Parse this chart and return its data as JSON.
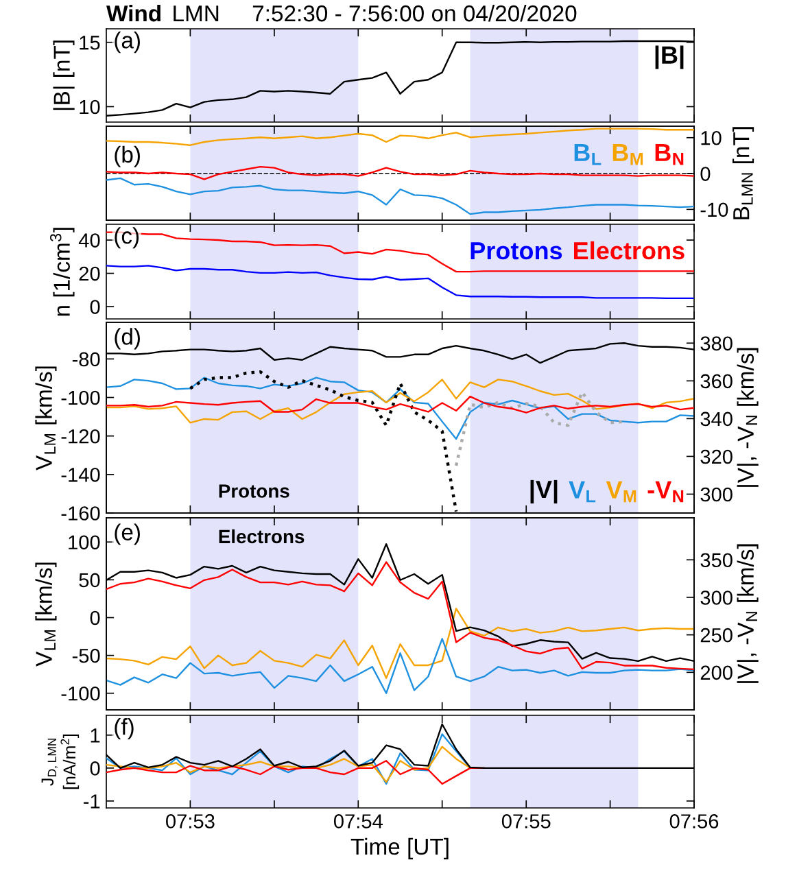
{
  "chart_data": [
    {
      "type": "line",
      "title": "Wind",
      "subtitle": "LMN     7:52:30 - 7:56:00 on 04/20/2020",
      "ylabel": "|B| [nT]",
      "annotations": [
        "(a)"
      ],
      "legend": "top right",
      "tick_labels": "y",
      "x": [
        7.875,
        7.87639,
        7.87778,
        7.87917,
        7.88056,
        7.88194,
        7.88333,
        7.88472,
        7.88611,
        7.8875,
        7.88889,
        7.89028,
        7.89167,
        7.89306,
        7.89444,
        7.89583,
        7.89722,
        7.89861,
        7.9,
        7.90139,
        7.90278,
        7.90417,
        7.90556,
        7.90694,
        7.90833,
        7.90972,
        7.91111,
        7.9125,
        7.91389,
        7.91528,
        7.91667,
        7.91806,
        7.91944,
        7.92083,
        7.92222,
        7.92361,
        7.925,
        7.92639,
        7.92778,
        7.92917,
        7.93056,
        7.93194,
        7.93333
      ],
      "xlim": [
        7.875,
        7.93333
      ],
      "xticks": [
        {
          "value": 7.88333,
          "label": null
        },
        {
          "value": 7.89167,
          "label": null
        },
        {
          "value": 7.9,
          "label": null
        },
        {
          "value": 7.90833,
          "label": null
        },
        {
          "value": 7.91667,
          "label": null
        },
        {
          "value": 7.925,
          "label": null
        },
        {
          "value": 7.93333,
          "label": null
        }
      ],
      "ylim": [
        8.8,
        16.05
      ],
      "yticks": [
        10,
        15
      ],
      "bands": [
        {
          "axis": "x",
          "from": 7.88333,
          "to": 7.9,
          "color": "#e3e3fb"
        },
        {
          "axis": "x",
          "from": 7.91111,
          "to": 7.92778,
          "color": "#e3e3fb"
        }
      ],
      "series": [
        {
          "name": "|B|",
          "color": "#000000",
          "values": [
            9.29,
            9.37,
            9.46,
            9.57,
            9.74,
            10.23,
            9.94,
            10.37,
            10.51,
            10.57,
            10.74,
            11.23,
            11.17,
            11.23,
            11.17,
            11.09,
            11.0,
            11.94,
            12.09,
            12.23,
            12.66,
            11.0,
            11.94,
            12.09,
            12.66,
            15.0,
            15.0,
            14.97,
            14.97,
            15.0,
            15.03,
            15.0,
            15.03,
            15.03,
            15.06,
            15.06,
            15.06,
            15.09,
            15.09,
            15.09,
            15.09,
            15.09,
            15.06
          ]
        }
      ]
    },
    {
      "type": "line",
      "y2label": "B$_{LMN}$ [nT]",
      "annotations": [
        "(b)"
      ],
      "legend": "top right",
      "tick_labels": "y",
      "x": [
        7.875,
        7.87639,
        7.87778,
        7.87917,
        7.88056,
        7.88194,
        7.88333,
        7.88472,
        7.88611,
        7.8875,
        7.88889,
        7.89028,
        7.89167,
        7.89306,
        7.89444,
        7.89583,
        7.89722,
        7.89861,
        7.9,
        7.90139,
        7.90278,
        7.90417,
        7.90556,
        7.90694,
        7.90833,
        7.90972,
        7.91111,
        7.9125,
        7.91389,
        7.91528,
        7.91667,
        7.91806,
        7.91944,
        7.92083,
        7.92222,
        7.92361,
        7.925,
        7.92639,
        7.92778,
        7.92917,
        7.93056,
        7.93194,
        7.93333
      ],
      "xlim": [
        7.875,
        7.93333
      ],
      "xticks": [
        {
          "value": 7.88333,
          "label": null
        },
        {
          "value": 7.89167,
          "label": null
        },
        {
          "value": 7.9,
          "label": null
        },
        {
          "value": 7.90833,
          "label": null
        },
        {
          "value": 7.91667,
          "label": null
        },
        {
          "value": 7.925,
          "label": null
        },
        {
          "value": 7.93333,
          "label": null
        }
      ],
      "y2lim": [
        -13,
        13.2
      ],
      "y2ticks": [
        -10,
        0,
        10
      ],
      "bands": [
        {
          "axis": "x",
          "from": 7.88333,
          "to": 7.9,
          "color": "#e3e3fb"
        },
        {
          "axis": "x",
          "from": 7.91111,
          "to": 7.92778,
          "color": "#e3e3fb"
        }
      ],
      "ref_lines": [
        {
          "axis": "y2",
          "value": 0,
          "color": "#000000",
          "line_style": "dashed"
        }
      ],
      "series": [
        {
          "name": "B$_{L}$",
          "color": "#1e90e0",
          "axis": "y2",
          "values": [
            -1.8,
            -1.3,
            -3.1,
            -2.9,
            -3.7,
            -5.0,
            -5.8,
            -5.0,
            -4.8,
            -3.9,
            -3.7,
            -3.4,
            -4.4,
            -4.7,
            -4.7,
            -5.0,
            -5.3,
            -5.5,
            -5.0,
            -6.0,
            -8.7,
            -4.4,
            -6.0,
            -6.2,
            -6.9,
            -8.7,
            -11.3,
            -10.8,
            -10.8,
            -10.5,
            -10.3,
            -10.1,
            -9.7,
            -9.4,
            -9.0,
            -8.7,
            -8.7,
            -8.7,
            -8.9,
            -9.0,
            -9.2,
            -9.4,
            -9.2
          ]
        },
        {
          "name": "B$_{M}$",
          "color": "#f5a300",
          "axis": "y2",
          "values": [
            9.1,
            9.0,
            8.8,
            8.8,
            8.6,
            8.3,
            7.9,
            8.8,
            9.3,
            9.6,
            9.8,
            10.1,
            9.8,
            10.1,
            10.4,
            9.8,
            10.1,
            10.6,
            11.1,
            10.7,
            8.8,
            10.6,
            10.4,
            9.8,
            10.7,
            11.4,
            10.1,
            10.4,
            10.7,
            10.9,
            11.1,
            11.4,
            11.7,
            12.0,
            12.2,
            12.5,
            12.5,
            12.5,
            12.5,
            12.4,
            12.2,
            12.2,
            12.2
          ]
        },
        {
          "name": "B$_{N}$",
          "color": "#ff0000",
          "axis": "y2",
          "values": [
            0.5,
            0.3,
            0.3,
            0.0,
            0.3,
            0.0,
            -0.2,
            -1.6,
            -0.2,
            0.5,
            1.2,
            1.9,
            1.6,
            0.3,
            -0.2,
            -0.5,
            -0.2,
            -0.2,
            -0.7,
            0.3,
            1.6,
            0.5,
            -0.2,
            -0.2,
            -0.5,
            -0.2,
            0.8,
            0.3,
            0.0,
            -0.2,
            -0.2,
            0.0,
            -0.2,
            -0.2,
            -0.5,
            -0.5,
            -0.5,
            -0.5,
            -0.7,
            -0.5,
            -0.5,
            -0.5,
            -0.7
          ]
        }
      ]
    },
    {
      "type": "line",
      "ylabel": "n [1/cm$^{3}$]",
      "annotations": [
        "(c)"
      ],
      "legend": "top right",
      "tick_labels": "y",
      "x": [
        7.875,
        7.87639,
        7.87778,
        7.87917,
        7.88056,
        7.88194,
        7.88333,
        7.88472,
        7.88611,
        7.8875,
        7.88889,
        7.89028,
        7.89167,
        7.89306,
        7.89444,
        7.89583,
        7.89722,
        7.89861,
        7.9,
        7.90139,
        7.90278,
        7.90417,
        7.90556,
        7.90694,
        7.90833,
        7.90972,
        7.91111,
        7.9125,
        7.91389,
        7.91528,
        7.91667,
        7.91806,
        7.91944,
        7.92083,
        7.92222,
        7.92361,
        7.925,
        7.92639,
        7.92778,
        7.92917,
        7.93056,
        7.93194,
        7.93333
      ],
      "xlim": [
        7.875,
        7.93333
      ],
      "xticks": [
        {
          "value": 7.88333,
          "label": null
        },
        {
          "value": 7.89167,
          "label": null
        },
        {
          "value": 7.9,
          "label": null
        },
        {
          "value": 7.90833,
          "label": null
        },
        {
          "value": 7.91667,
          "label": null
        },
        {
          "value": 7.925,
          "label": null
        },
        {
          "value": 7.93333,
          "label": null
        }
      ],
      "ylim": [
        -7.4,
        49.5
      ],
      "yticks": [
        0,
        20,
        40
      ],
      "bands": [
        {
          "axis": "x",
          "from": 7.88333,
          "to": 7.9,
          "color": "#e3e3fb"
        },
        {
          "axis": "x",
          "from": 7.91111,
          "to": 7.92778,
          "color": "#e3e3fb"
        }
      ],
      "series": [
        {
          "name": "Protons",
          "color": "#0000ff",
          "values": [
            24.6,
            24.1,
            24.1,
            24.6,
            23.4,
            21.7,
            22.7,
            22.7,
            22.2,
            22.2,
            21.0,
            20.3,
            20.3,
            20.8,
            20.3,
            20.6,
            18.7,
            17.5,
            16.5,
            16.3,
            18.0,
            16.1,
            16.5,
            17.0,
            11.6,
            6.9,
            6.1,
            6.1,
            6.1,
            5.9,
            5.9,
            5.7,
            5.7,
            5.7,
            5.7,
            5.2,
            5.2,
            5.2,
            5.2,
            5.2,
            5.0,
            5.0,
            5.0
          ]
        },
        {
          "name": "Electrons",
          "color": "#ff0000",
          "values": [
            44.7,
            44.7,
            44.0,
            43.5,
            43.5,
            41.1,
            40.6,
            40.4,
            40.0,
            39.2,
            39.2,
            38.8,
            36.9,
            37.1,
            36.9,
            37.1,
            36.4,
            32.1,
            32.8,
            31.7,
            34.3,
            33.6,
            32.1,
            31.2,
            25.8,
            21.0,
            21.0,
            21.3,
            21.3,
            21.3,
            21.3,
            21.3,
            21.3,
            21.3,
            21.3,
            21.3,
            21.3,
            21.3,
            21.3,
            21.3,
            21.3,
            21.3,
            21.3
          ]
        }
      ]
    },
    {
      "type": "line",
      "ylabel": "V$_{LM}$ [km/s]",
      "y2label": "|V|, -V$_{N}$ [km/s]",
      "annotations": [
        "(d)",
        "Protons"
      ],
      "legend": "bottom right",
      "tick_labels": "y",
      "x": [
        7.875,
        7.87639,
        7.87778,
        7.87917,
        7.88056,
        7.88194,
        7.88333,
        7.88472,
        7.88611,
        7.8875,
        7.88889,
        7.89028,
        7.89167,
        7.89306,
        7.89444,
        7.89583,
        7.89722,
        7.89861,
        7.9,
        7.90139,
        7.90278,
        7.90417,
        7.90556,
        7.90694,
        7.90833,
        7.90972,
        7.91111,
        7.9125,
        7.91389,
        7.91528,
        7.91667,
        7.91806,
        7.91944,
        7.92083,
        7.92222,
        7.92361,
        7.925,
        7.92639,
        7.92778,
        7.92917,
        7.93056,
        7.93194,
        7.93333
      ],
      "xlim": [
        7.875,
        7.93333
      ],
      "xticks": [
        {
          "value": 7.88333,
          "label": null
        },
        {
          "value": 7.89167,
          "label": null
        },
        {
          "value": 7.9,
          "label": null
        },
        {
          "value": 7.90833,
          "label": null
        },
        {
          "value": 7.91667,
          "label": null
        },
        {
          "value": 7.925,
          "label": null
        },
        {
          "value": 7.93333,
          "label": null
        }
      ],
      "ylim": [
        -160,
        -61
      ],
      "yticks": [
        -160,
        -140,
        -120,
        -100,
        -80
      ],
      "y2lim": [
        290,
        391
      ],
      "y2ticks": [
        300,
        320,
        340,
        360,
        380
      ],
      "bands": [
        {
          "axis": "x",
          "from": 7.88333,
          "to": 7.9,
          "color": "#e3e3fb"
        },
        {
          "axis": "x",
          "from": 7.91111,
          "to": 7.92778,
          "color": "#e3e3fb"
        }
      ],
      "series": [
        {
          "name": "|V|",
          "color": "#000000",
          "axis": "y2",
          "values": [
            374.5,
            374.5,
            374,
            374.5,
            375.6,
            376,
            376.6,
            376.6,
            376,
            375.6,
            376,
            377.2,
            371.1,
            372,
            371.1,
            374.5,
            378,
            377.2,
            376.6,
            376,
            372.7,
            372.7,
            374,
            374,
            377.2,
            378.6,
            377.2,
            376,
            374,
            371.5,
            374,
            369.5,
            372.7,
            376,
            376.6,
            377.2,
            379.6,
            380,
            378.6,
            378,
            378,
            377.6,
            376.6
          ]
        },
        {
          "name": "V$_{L}$",
          "color": "#1e90e0",
          "values": [
            -94.7,
            -94.1,
            -90.7,
            -91.3,
            -92.7,
            -95.7,
            -95.3,
            -89.7,
            -92.7,
            -93.7,
            -94.1,
            -95.3,
            -93.3,
            -94.1,
            -92.7,
            -89.7,
            -91.7,
            -92.1,
            -96.3,
            -97.3,
            -102.6,
            -95.7,
            -102.6,
            -103.2,
            -112.5,
            -121.5,
            -107.6,
            -102.6,
            -103.6,
            -101.6,
            -103.6,
            -105.6,
            -104.6,
            -111.2,
            -108.6,
            -108.6,
            -111.9,
            -112.5,
            -113.1,
            -112.5,
            -112.5,
            -109.2,
            -109.6
          ]
        },
        {
          "name": "V$_{M}$",
          "color": "#f5a300",
          "values": [
            -105.2,
            -105.2,
            -104.6,
            -106,
            -105.6,
            -104.6,
            -113.1,
            -111.2,
            -111.6,
            -107.6,
            -107.2,
            -111.2,
            -107.2,
            -105.6,
            -111.2,
            -107.6,
            -102.6,
            -98.3,
            -97.3,
            -96.7,
            -102.6,
            -97.7,
            -102.0,
            -97.3,
            -90.7,
            -100.6,
            -92.1,
            -94.7,
            -90.7,
            -91.7,
            -94.1,
            -96.7,
            -98.7,
            -98.1,
            -101.6,
            -106,
            -105.2,
            -104,
            -103.2,
            -105.6,
            -102.6,
            -102,
            -100.6
          ]
        },
        {
          "name": "-V$_{N}$",
          "color": "#ff0000",
          "axis": "y2",
          "values": [
            346.9,
            346.9,
            347.3,
            346.3,
            346.9,
            348.9,
            348.3,
            347.7,
            347.3,
            348.3,
            348.9,
            349.3,
            343.6,
            343.6,
            344.8,
            350.3,
            348.3,
            348.3,
            348.3,
            346.3,
            344.8,
            347.7,
            345.7,
            343.6,
            348.3,
            344.2,
            351.7,
            348.3,
            346.3,
            345.3,
            343.2,
            345.7,
            346.9,
            345.3,
            346.3,
            346.9,
            346.3,
            347.3,
            347.7,
            346.3,
            346.9,
            344.8,
            345.7
          ]
        },
        {
          "color": "#000000",
          "line_style": "dotted",
          "values": [
            null,
            null,
            null,
            null,
            null,
            null,
            -95.3,
            -90.7,
            -89.7,
            -89.7,
            -87.3,
            -86.7,
            -91.7,
            -94.7,
            -91.3,
            -93.7,
            -96.1,
            -99.6,
            -101.6,
            -102.6,
            -114.5,
            -92.7,
            -107.6,
            -111.9,
            -117.5,
            -159.2,
            null,
            null,
            null,
            null,
            null,
            null,
            null,
            null,
            null,
            null,
            null,
            null,
            null,
            null,
            null,
            null,
            null
          ]
        },
        {
          "color": "#aaaaaa",
          "line_style": "dotted",
          "values": [
            null,
            null,
            null,
            null,
            null,
            null,
            null,
            null,
            null,
            null,
            null,
            null,
            null,
            null,
            null,
            null,
            null,
            null,
            null,
            null,
            null,
            null,
            null,
            null,
            null,
            -135.4,
            -103.6,
            -105.2,
            -102.6,
            -105.6,
            -103.2,
            -104.6,
            -113.1,
            -114.5,
            -97.3,
            -107.6,
            -113.1,
            -112.5,
            null,
            null,
            null,
            null,
            null
          ]
        }
      ]
    },
    {
      "type": "line",
      "ylabel": "V$_{LM}$ [km/s]",
      "y2label": "|V|, -V$_{N}$ [km/s]",
      "annotations": [
        "(e)",
        "Electrons"
      ],
      "tick_labels": "y",
      "x": [
        7.875,
        7.87639,
        7.87778,
        7.87917,
        7.88056,
        7.88194,
        7.88333,
        7.88472,
        7.88611,
        7.8875,
        7.88889,
        7.89028,
        7.89167,
        7.89306,
        7.89444,
        7.89583,
        7.89722,
        7.89861,
        7.9,
        7.90139,
        7.90278,
        7.90417,
        7.90556,
        7.90694,
        7.90833,
        7.90972,
        7.91111,
        7.9125,
        7.91389,
        7.91528,
        7.91667,
        7.91806,
        7.91944,
        7.92083,
        7.92222,
        7.92361,
        7.925,
        7.92639,
        7.92778,
        7.92917,
        7.93056,
        7.93194,
        7.93333
      ],
      "xlim": [
        7.875,
        7.93333
      ],
      "xticks": [
        {
          "value": 7.88333,
          "label": null
        },
        {
          "value": 7.89167,
          "label": null
        },
        {
          "value": 7.9,
          "label": null
        },
        {
          "value": 7.90833,
          "label": null
        },
        {
          "value": 7.91667,
          "label": null
        },
        {
          "value": 7.925,
          "label": null
        },
        {
          "value": 7.93333,
          "label": null
        }
      ],
      "ylim": [
        -122,
        132
      ],
      "yticks": [
        -100,
        -50,
        0,
        50,
        100
      ],
      "y2lim": [
        150,
        406
      ],
      "y2ticks": [
        200,
        250,
        300,
        350
      ],
      "bands": [
        {
          "axis": "x",
          "from": 7.88333,
          "to": 7.9,
          "color": "#e3e3fb"
        },
        {
          "axis": "x",
          "from": 7.91111,
          "to": 7.92778,
          "color": "#e3e3fb"
        }
      ],
      "series": [
        {
          "color": "#000000",
          "axis": "y2",
          "values": [
            323,
            334,
            334,
            336,
            333,
            326,
            330,
            341,
            338,
            342,
            333,
            341,
            336,
            334,
            332,
            331,
            331,
            317,
            351,
            326,
            371,
            323,
            331,
            318,
            330,
            255,
            260,
            256,
            248,
            235,
            238,
            243,
            241,
            240,
            218,
            226,
            219,
            218,
            215,
            221,
            215,
            219,
            215
          ]
        },
        {
          "color": "#ff0000",
          "axis": "y2",
          "values": [
            311,
            318,
            320,
            325,
            321,
            316,
            312,
            323,
            327,
            337,
            327,
            320,
            320,
            317,
            321,
            317,
            316,
            308,
            332,
            316,
            347,
            320,
            306,
            298,
            321,
            240,
            253,
            246,
            243,
            236,
            228,
            225,
            231,
            233,
            205,
            214,
            213,
            209,
            209,
            209,
            206,
            205,
            204
          ]
        },
        {
          "color": "#f5a300",
          "values": [
            -54,
            -55,
            -57,
            -62,
            -52,
            -55,
            -38,
            -67,
            -50,
            -63,
            -60,
            -44,
            -57,
            -60,
            -65,
            -49,
            -54,
            -30,
            -63,
            -37,
            -80,
            -35,
            -63,
            -63,
            -57,
            12,
            -18,
            -24,
            -13,
            -18,
            -15,
            -20,
            -18,
            -13,
            -18,
            -17,
            -15,
            -13,
            -17,
            -15,
            -14,
            -15,
            -15
          ]
        },
        {
          "color": "#1e90e0",
          "values": [
            -83,
            -89,
            -79,
            -86,
            -75,
            -80,
            -60,
            -74,
            -73,
            -77,
            -74,
            -72,
            -93,
            -77,
            -80,
            -84,
            -63,
            -84,
            -75,
            -65,
            -100,
            -47,
            -96,
            -78,
            -28,
            -78,
            -84,
            -78,
            -65,
            -70,
            -69,
            -73,
            -70,
            -77,
            -72,
            -73,
            -73,
            -70,
            -69,
            -70,
            -70,
            -68,
            -70
          ]
        }
      ]
    },
    {
      "type": "line",
      "ylabel": "J$_{D,LMN}$\n[nA/m$^{2}$]",
      "xlabel": "Time [UT]",
      "annotations": [
        "(f)"
      ],
      "x": [
        7.875,
        7.87639,
        7.87778,
        7.87917,
        7.88056,
        7.88194,
        7.88333,
        7.88472,
        7.88611,
        7.8875,
        7.88889,
        7.89028,
        7.89167,
        7.89306,
        7.89444,
        7.89583,
        7.89722,
        7.89861,
        7.9,
        7.90139,
        7.90278,
        7.90417,
        7.90556,
        7.90694,
        7.90833,
        7.90972,
        7.91111,
        7.9125,
        7.91389,
        7.91528,
        7.91667,
        7.91806,
        7.91944,
        7.92083,
        7.92222,
        7.92361,
        7.925,
        7.92639,
        7.92778,
        7.92917,
        7.93056,
        7.93194,
        7.93333
      ],
      "xlim": [
        7.875,
        7.93333
      ],
      "xticks": [
        {
          "value": 7.88333,
          "label": "07:53"
        },
        {
          "value": 7.89167,
          "label": null
        },
        {
          "value": 7.9,
          "label": "07:54"
        },
        {
          "value": 7.90833,
          "label": null
        },
        {
          "value": 7.91667,
          "label": "07:55"
        },
        {
          "value": 7.925,
          "label": null
        },
        {
          "value": 7.93333,
          "label": "07:56"
        }
      ],
      "ylim": [
        -1.21,
        1.6
      ],
      "yticks": [
        -1,
        0,
        1
      ],
      "bands": [
        {
          "axis": "x",
          "from": 7.88333,
          "to": 7.9,
          "color": "#e3e3fb"
        },
        {
          "axis": "x",
          "from": 7.91111,
          "to": 7.92778,
          "color": "#e3e3fb"
        }
      ],
      "series": [
        {
          "color": "#1e90e0",
          "values": [
            0.3,
            0,
            0.05,
            0,
            -0.07,
            0.3,
            -0.19,
            0.05,
            -0.07,
            -0.19,
            0.16,
            0.51,
            0.05,
            -0.13,
            0.05,
            0,
            0.28,
            0.51,
            0.05,
            0.28,
            -0.48,
            0.45,
            -0.05,
            -0.07,
            1.03,
            0.51,
            0,
            0,
            null,
            null,
            null,
            null,
            null,
            null,
            null,
            null,
            null,
            null,
            null,
            null,
            null,
            null,
            null
          ]
        },
        {
          "color": "#f5a300",
          "values": [
            0.1,
            0.05,
            0,
            0,
            0.05,
            0.16,
            -0.13,
            0.05,
            0,
            0.05,
            0.1,
            0.19,
            0.05,
            0.05,
            0,
            0,
            0.1,
            0.28,
            0.05,
            0.1,
            -0.42,
            0.22,
            -0.05,
            0,
            0.65,
            0.28,
            0,
            0,
            null,
            null,
            null,
            null,
            null,
            null,
            null,
            null,
            null,
            null,
            null,
            null,
            null,
            null,
            null
          ]
        },
        {
          "color": "#ff0000",
          "values": [
            -0.13,
            -0.05,
            0,
            -0.07,
            -0.13,
            -0.13,
            0.07,
            -0.07,
            -0.07,
            0.05,
            -0.05,
            -0.19,
            0.05,
            -0.05,
            0,
            0,
            -0.13,
            -0.19,
            0,
            0,
            0.22,
            -0.19,
            0,
            -0.05,
            -0.48,
            -0.24,
            0,
            0,
            null,
            null,
            null,
            null,
            null,
            null,
            null,
            null,
            null,
            null,
            null,
            null,
            null,
            null,
            null
          ]
        },
        {
          "color": "#000000",
          "values": [
            0.4,
            0,
            0.16,
            0.02,
            0.1,
            0.34,
            0.16,
            0.1,
            0.22,
            0.05,
            0.28,
            0.57,
            0.07,
            0.19,
            0.02,
            0.05,
            0.22,
            0.53,
            0.07,
            0.16,
            0.69,
            0.57,
            0.1,
            0.07,
            1.33,
            0.57,
            0.02,
            0,
            0,
            0,
            0,
            0,
            0,
            0,
            0,
            0,
            0,
            0,
            0,
            0,
            0,
            0,
            0
          ]
        }
      ]
    }
  ]
}
